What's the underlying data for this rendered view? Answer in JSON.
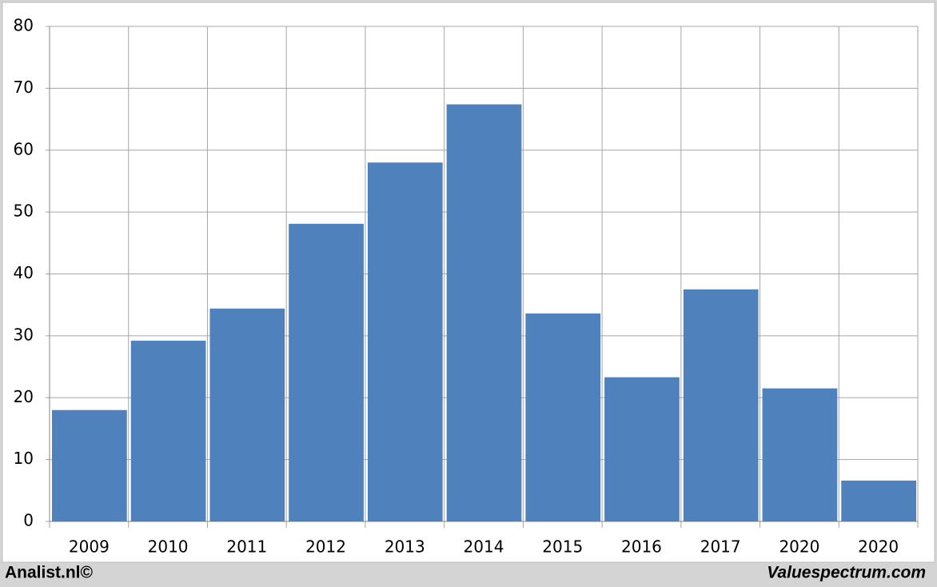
{
  "chart_data": {
    "type": "bar",
    "categories": [
      "2009",
      "2010",
      "2011",
      "2012",
      "2013",
      "2014",
      "2015",
      "2016",
      "2017",
      "2020",
      "2020"
    ],
    "values": [
      18,
      29.2,
      34.4,
      48.1,
      58,
      67.4,
      33.6,
      23.3,
      37.5,
      21.5,
      6.6
    ],
    "color": "#4f81bd",
    "ylim": [
      0,
      80
    ],
    "yticks": [
      0,
      10,
      20,
      30,
      40,
      50,
      60,
      70,
      80
    ],
    "grid": true,
    "footer_left": "Analist.nl©",
    "footer_right": "Valuespectrum.com"
  }
}
